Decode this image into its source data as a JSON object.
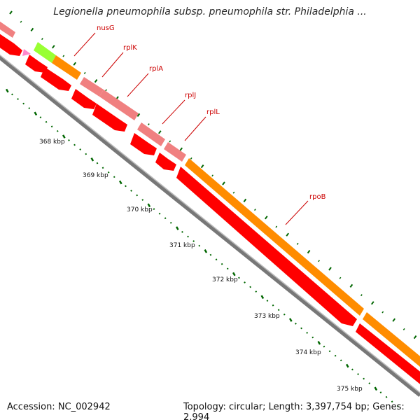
{
  "title": "Legionella pneumophila subsp. pneumophila str. Philadelphia ...",
  "footer": {
    "accession": "Accession: NC_002942",
    "summary": "Topology: circular; Length: 3,397,754 bp; Genes: 2,994"
  },
  "gene_labels": [
    "nusG",
    "rplK",
    "rplA",
    "rplJ",
    "rplL",
    "rpoB"
  ],
  "kbp_labels": [
    "368 kbp",
    "369 kbp",
    "370 kbp",
    "371 kbp",
    "372 kbp",
    "373 kbp",
    "374 kbp",
    "375 kbp"
  ],
  "colors": {
    "forward_strand": "#ff0000",
    "rna_gene": "#f08080",
    "cds_feature": "#ff8c00",
    "misc_feature": "#99ff33",
    "small_feature": "#ff88cc",
    "backbone": "#888888",
    "ticks": "#006600",
    "label": "#cc0000"
  }
}
